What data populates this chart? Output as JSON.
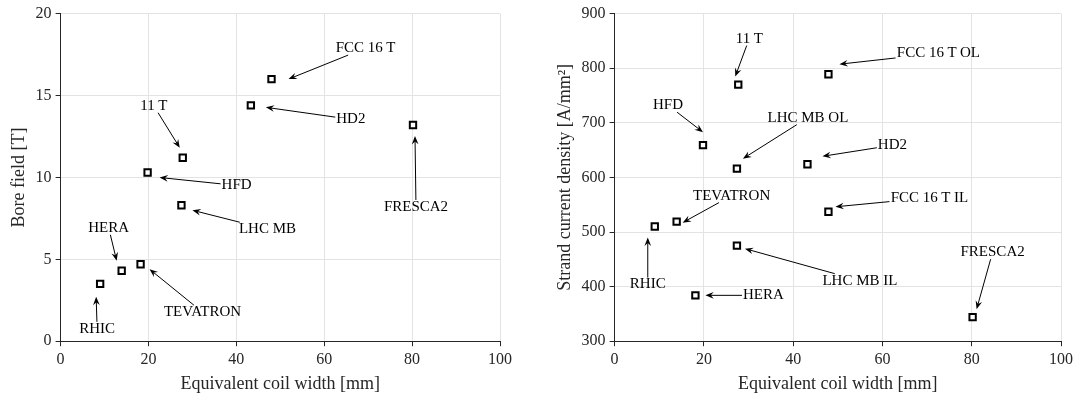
{
  "chart_data": [
    {
      "type": "scatter",
      "xlabel": "Equivalent coil width [mm]",
      "ylabel": "Bore field [T]",
      "x": [
        9.0,
        13.9,
        18.2,
        19.8,
        27.8,
        27.5,
        43.3,
        48.0,
        80.2
      ],
      "series": [
        {
          "color": "#000000",
          "values": [
            3.5,
            4.3,
            4.7,
            10.3,
            11.2,
            8.3,
            14.4,
            16.0,
            13.2
          ]
        }
      ],
      "xlim": [
        0,
        100
      ],
      "xticks": [
        0,
        20,
        40,
        60,
        80,
        100
      ],
      "ylim": [
        0,
        20
      ],
      "yticks": [
        0,
        5,
        10,
        15,
        20
      ],
      "grid": true,
      "legend": false,
      "marker": "square",
      "annotations": [
        "RHIC",
        "HERA",
        "TEVATRON",
        "HFD",
        "11 T",
        "LHC MB",
        "HD2",
        "FCC 16 T",
        "FRESCA2"
      ]
    },
    {
      "type": "scatter",
      "xlabel": "Equivalent coil width [mm]",
      "ylabel": "Strand current density [A/mm²]",
      "x": [
        27.7,
        47.9,
        19.8,
        27.4,
        43.2,
        13.9,
        9.0,
        47.9,
        27.4,
        18.1,
        80.2
      ],
      "series": [
        {
          "color": "#000000",
          "values": [
            770,
            789,
            659,
            616,
            624,
            519,
            510,
            537,
            475,
            384,
            344
          ]
        }
      ],
      "xlim": [
        0,
        100
      ],
      "xticks": [
        0,
        20,
        40,
        60,
        80,
        100
      ],
      "ylim": [
        300,
        900
      ],
      "yticks": [
        300,
        400,
        500,
        600,
        700,
        800,
        900
      ],
      "grid": true,
      "legend": false,
      "marker": "square",
      "annotations": [
        "11 T",
        "FCC 16 T OL",
        "HFD",
        "LHC MB OL",
        "HD2",
        "TEVATRON",
        "RHIC",
        "FCC 16 T IL",
        "LHC MB IL",
        "HERA",
        "FRESCA2"
      ]
    }
  ]
}
